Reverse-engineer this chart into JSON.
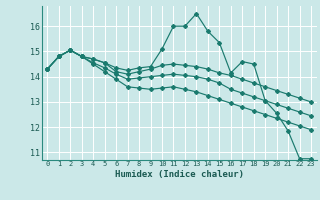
{
  "xlabel": "Humidex (Indice chaleur)",
  "bg_color": "#cbe8e8",
  "grid_color": "#ffffff",
  "line_color": "#1a7a6e",
  "xlim": [
    -0.5,
    23.5
  ],
  "ylim": [
    10.7,
    16.8
  ],
  "yticks": [
    11,
    12,
    13,
    14,
    15,
    16
  ],
  "xticks": [
    0,
    1,
    2,
    3,
    4,
    5,
    6,
    7,
    8,
    9,
    10,
    11,
    12,
    13,
    14,
    15,
    16,
    17,
    18,
    19,
    20,
    21,
    22,
    23
  ],
  "series": [
    [
      14.3,
      14.8,
      15.05,
      14.8,
      14.7,
      14.55,
      14.35,
      14.25,
      14.35,
      14.4,
      15.1,
      16.0,
      16.0,
      16.5,
      15.8,
      15.35,
      14.15,
      14.6,
      14.5,
      13.05,
      12.55,
      11.85,
      10.75,
      10.75
    ],
    [
      14.3,
      14.8,
      15.05,
      14.8,
      14.7,
      14.55,
      14.2,
      14.1,
      14.2,
      14.3,
      14.45,
      14.5,
      14.45,
      14.4,
      14.3,
      14.15,
      14.05,
      13.9,
      13.75,
      13.6,
      13.45,
      13.3,
      13.15,
      13.0
    ],
    [
      14.3,
      14.8,
      15.05,
      14.8,
      14.55,
      14.35,
      14.1,
      13.9,
      13.95,
      14.0,
      14.05,
      14.1,
      14.05,
      14.0,
      13.9,
      13.75,
      13.5,
      13.35,
      13.2,
      13.05,
      12.9,
      12.75,
      12.6,
      12.45
    ],
    [
      14.3,
      14.8,
      15.05,
      14.8,
      14.5,
      14.2,
      13.9,
      13.6,
      13.55,
      13.5,
      13.55,
      13.6,
      13.5,
      13.4,
      13.25,
      13.1,
      12.95,
      12.8,
      12.65,
      12.5,
      12.35,
      12.2,
      12.05,
      11.9
    ]
  ],
  "xticklabels": [
    "0",
    "1",
    "2",
    "3",
    "4",
    "5",
    "6",
    "7",
    "8",
    "9",
    "10",
    "11",
    "12",
    "13",
    "14",
    "15",
    "16",
    "17",
    "18",
    "19",
    "20",
    "21",
    "22",
    "23"
  ]
}
